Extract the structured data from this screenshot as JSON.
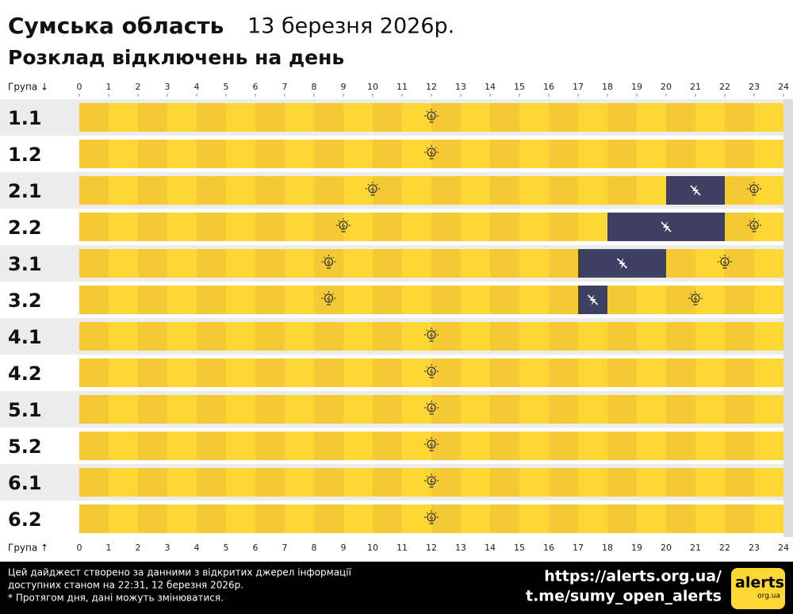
{
  "chart_data": {
    "type": "timeline",
    "title": "Сумська область",
    "date": "13 березня 2026р.",
    "subtitle": "Розклад відключень на день",
    "axis_label_top": "Група ↓",
    "axis_label_bottom": "Група ↑",
    "xlim": [
      0,
      24
    ],
    "xticks": [
      0,
      1,
      2,
      3,
      4,
      5,
      6,
      7,
      8,
      9,
      10,
      11,
      12,
      13,
      14,
      15,
      16,
      17,
      18,
      19,
      20,
      21,
      22,
      23,
      24
    ],
    "on_color": "#fdd835",
    "off_color": "#3d3f63",
    "rows": [
      {
        "label": "1.1",
        "outages": []
      },
      {
        "label": "1.2",
        "outages": []
      },
      {
        "label": "2.1",
        "outages": [
          [
            20,
            22
          ]
        ]
      },
      {
        "label": "2.2",
        "outages": [
          [
            18,
            22
          ]
        ]
      },
      {
        "label": "3.1",
        "outages": [
          [
            17,
            20
          ]
        ]
      },
      {
        "label": "3.2",
        "outages": [
          [
            17,
            18
          ]
        ]
      },
      {
        "label": "4.1",
        "outages": []
      },
      {
        "label": "4.2",
        "outages": []
      },
      {
        "label": "5.1",
        "outages": []
      },
      {
        "label": "5.2",
        "outages": []
      },
      {
        "label": "6.1",
        "outages": []
      },
      {
        "label": "6.2",
        "outages": []
      }
    ],
    "footer": {
      "note_lines": [
        "Цей дайджест створено за данними з відкритих джерел інформації",
        "доступних станом на 22:31, 12 березня 2026р.",
        "* Протягом дня, дані можуть змінюватися."
      ],
      "links": [
        "https://alerts.org.ua/",
        "t.me/sumy_open_alerts"
      ],
      "logo": "alerts",
      "logo_sub": "org.ua"
    }
  }
}
